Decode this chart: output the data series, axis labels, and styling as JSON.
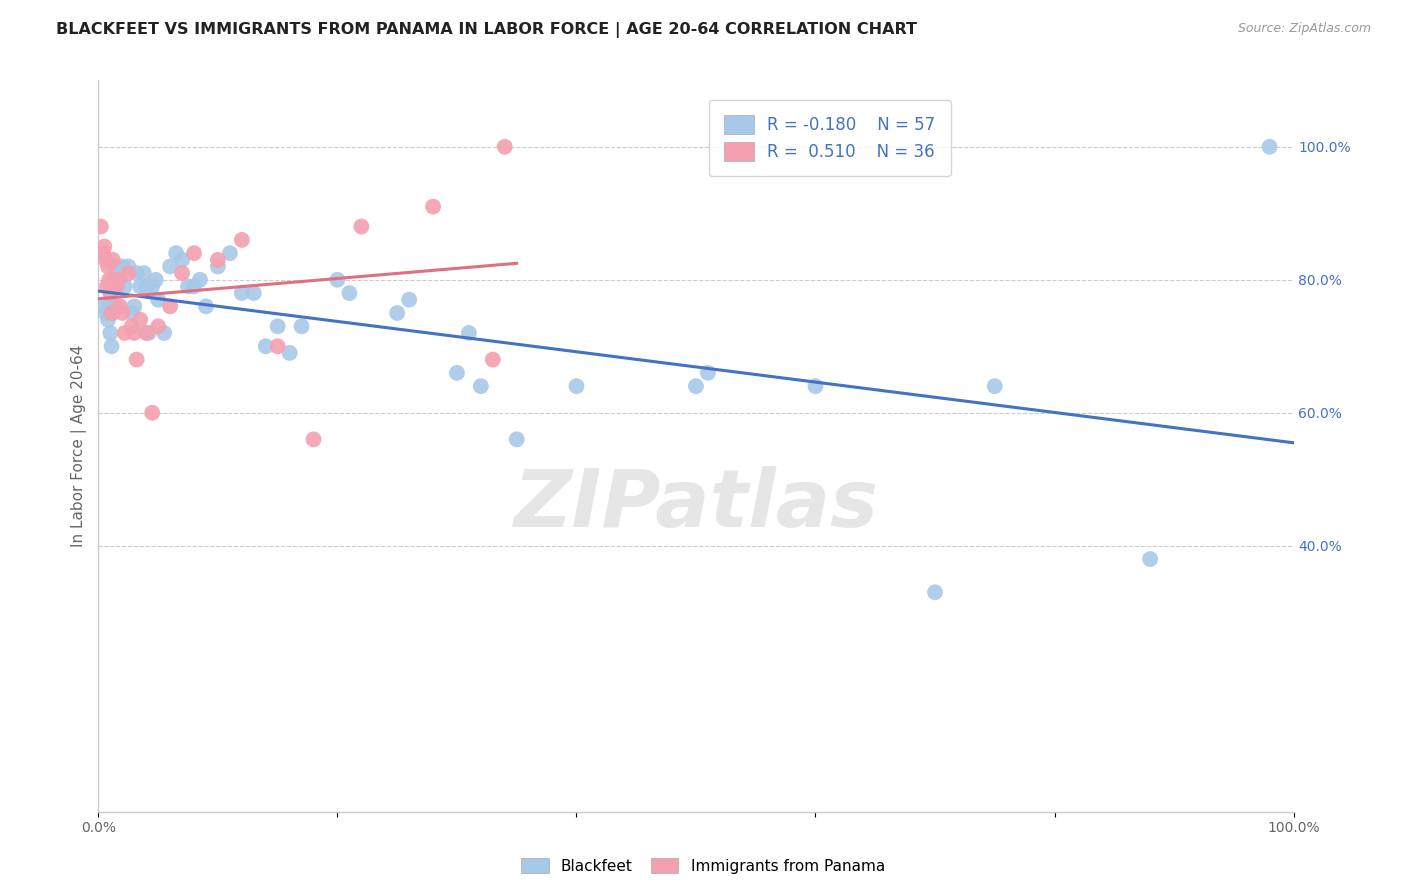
{
  "title": "BLACKFEET VS IMMIGRANTS FROM PANAMA IN LABOR FORCE | AGE 20-64 CORRELATION CHART",
  "source": "Source: ZipAtlas.com",
  "ylabel": "In Labor Force | Age 20-64",
  "xlim": [
    0.0,
    1.0
  ],
  "ylim": [
    0.0,
    1.1
  ],
  "x_tick_vals": [
    0.0,
    0.2,
    0.4,
    0.6,
    0.8,
    1.0
  ],
  "x_tick_labels": [
    "0.0%",
    "",
    "",
    "",
    "",
    "100.0%"
  ],
  "y_tick_vals_right": [
    0.4,
    0.6,
    0.8,
    1.0
  ],
  "y_tick_labels_right": [
    "40.0%",
    "60.0%",
    "80.0%",
    "100.0%"
  ],
  "blue_color": "#A8C8E8",
  "pink_color": "#F4A0B0",
  "blue_line_color": "#4472C4",
  "pink_line_color": "#E07080",
  "legend_blue_r": "-0.180",
  "legend_blue_n": "57",
  "legend_pink_r": "0.510",
  "legend_pink_n": "36",
  "watermark": "ZIPatlas",
  "blue_scatter_x": [
    0.004,
    0.006,
    0.008,
    0.009,
    0.01,
    0.011,
    0.012,
    0.013,
    0.014,
    0.015,
    0.016,
    0.018,
    0.02,
    0.022,
    0.025,
    0.028,
    0.03,
    0.032,
    0.035,
    0.038,
    0.04,
    0.042,
    0.045,
    0.048,
    0.05,
    0.055,
    0.06,
    0.065,
    0.07,
    0.075,
    0.08,
    0.085,
    0.09,
    0.1,
    0.11,
    0.12,
    0.13,
    0.14,
    0.15,
    0.16,
    0.17,
    0.2,
    0.21,
    0.25,
    0.26,
    0.3,
    0.31,
    0.32,
    0.35,
    0.4,
    0.5,
    0.51,
    0.6,
    0.7,
    0.75,
    0.88,
    0.98
  ],
  "blue_scatter_y": [
    0.76,
    0.75,
    0.74,
    0.76,
    0.72,
    0.7,
    0.75,
    0.8,
    0.82,
    0.76,
    0.79,
    0.8,
    0.82,
    0.79,
    0.82,
    0.75,
    0.76,
    0.81,
    0.79,
    0.81,
    0.79,
    0.72,
    0.79,
    0.8,
    0.77,
    0.72,
    0.82,
    0.84,
    0.83,
    0.79,
    0.79,
    0.8,
    0.76,
    0.82,
    0.84,
    0.78,
    0.78,
    0.7,
    0.73,
    0.69,
    0.73,
    0.8,
    0.78,
    0.75,
    0.77,
    0.66,
    0.72,
    0.64,
    0.56,
    0.64,
    0.64,
    0.66,
    0.64,
    0.33,
    0.64,
    0.38,
    1.0
  ],
  "pink_scatter_x": [
    0.002,
    0.004,
    0.005,
    0.006,
    0.007,
    0.008,
    0.009,
    0.01,
    0.011,
    0.012,
    0.013,
    0.014,
    0.015,
    0.016,
    0.018,
    0.02,
    0.022,
    0.025,
    0.028,
    0.03,
    0.032,
    0.035,
    0.04,
    0.045,
    0.05,
    0.06,
    0.07,
    0.08,
    0.1,
    0.12,
    0.15,
    0.18,
    0.22,
    0.28,
    0.33,
    0.34
  ],
  "pink_scatter_y": [
    0.88,
    0.84,
    0.85,
    0.83,
    0.79,
    0.82,
    0.8,
    0.78,
    0.75,
    0.83,
    0.8,
    0.79,
    0.79,
    0.8,
    0.76,
    0.75,
    0.72,
    0.81,
    0.73,
    0.72,
    0.68,
    0.74,
    0.72,
    0.6,
    0.73,
    0.76,
    0.81,
    0.84,
    0.83,
    0.86,
    0.7,
    0.56,
    0.88,
    0.91,
    0.68,
    1.0
  ]
}
